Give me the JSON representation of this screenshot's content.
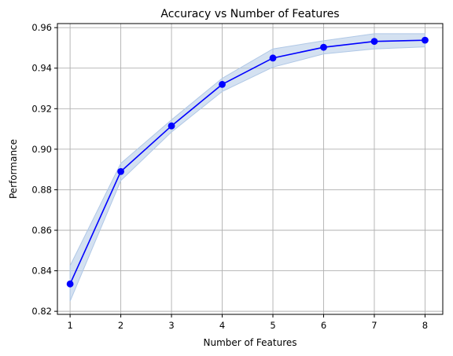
{
  "chart_data": {
    "type": "line",
    "title": "Accuracy vs Number of Features",
    "xlabel": "Number of Features",
    "ylabel": "Performance",
    "x": [
      1,
      2,
      3,
      4,
      5,
      6,
      7,
      8
    ],
    "series": [
      {
        "values": [
          0.8335,
          0.889,
          0.9115,
          0.932,
          0.945,
          0.9503,
          0.9532,
          0.9538
        ],
        "lower": [
          0.825,
          0.8845,
          0.9085,
          0.9285,
          0.9405,
          0.947,
          0.9495,
          0.9505
        ],
        "upper": [
          0.8425,
          0.893,
          0.9145,
          0.935,
          0.9495,
          0.9535,
          0.957,
          0.957
        ],
        "color": "#0000ff",
        "band_color": "#b0c8e6"
      }
    ],
    "xticks": [
      "1",
      "2",
      "3",
      "4",
      "5",
      "6",
      "7",
      "8"
    ],
    "yticks": [
      "0.82",
      "0.84",
      "0.86",
      "0.88",
      "0.90",
      "0.92",
      "0.94",
      "0.96"
    ],
    "xlim": [
      0.75,
      8.35
    ],
    "ylim": [
      0.8185,
      0.962
    ],
    "grid": true
  }
}
